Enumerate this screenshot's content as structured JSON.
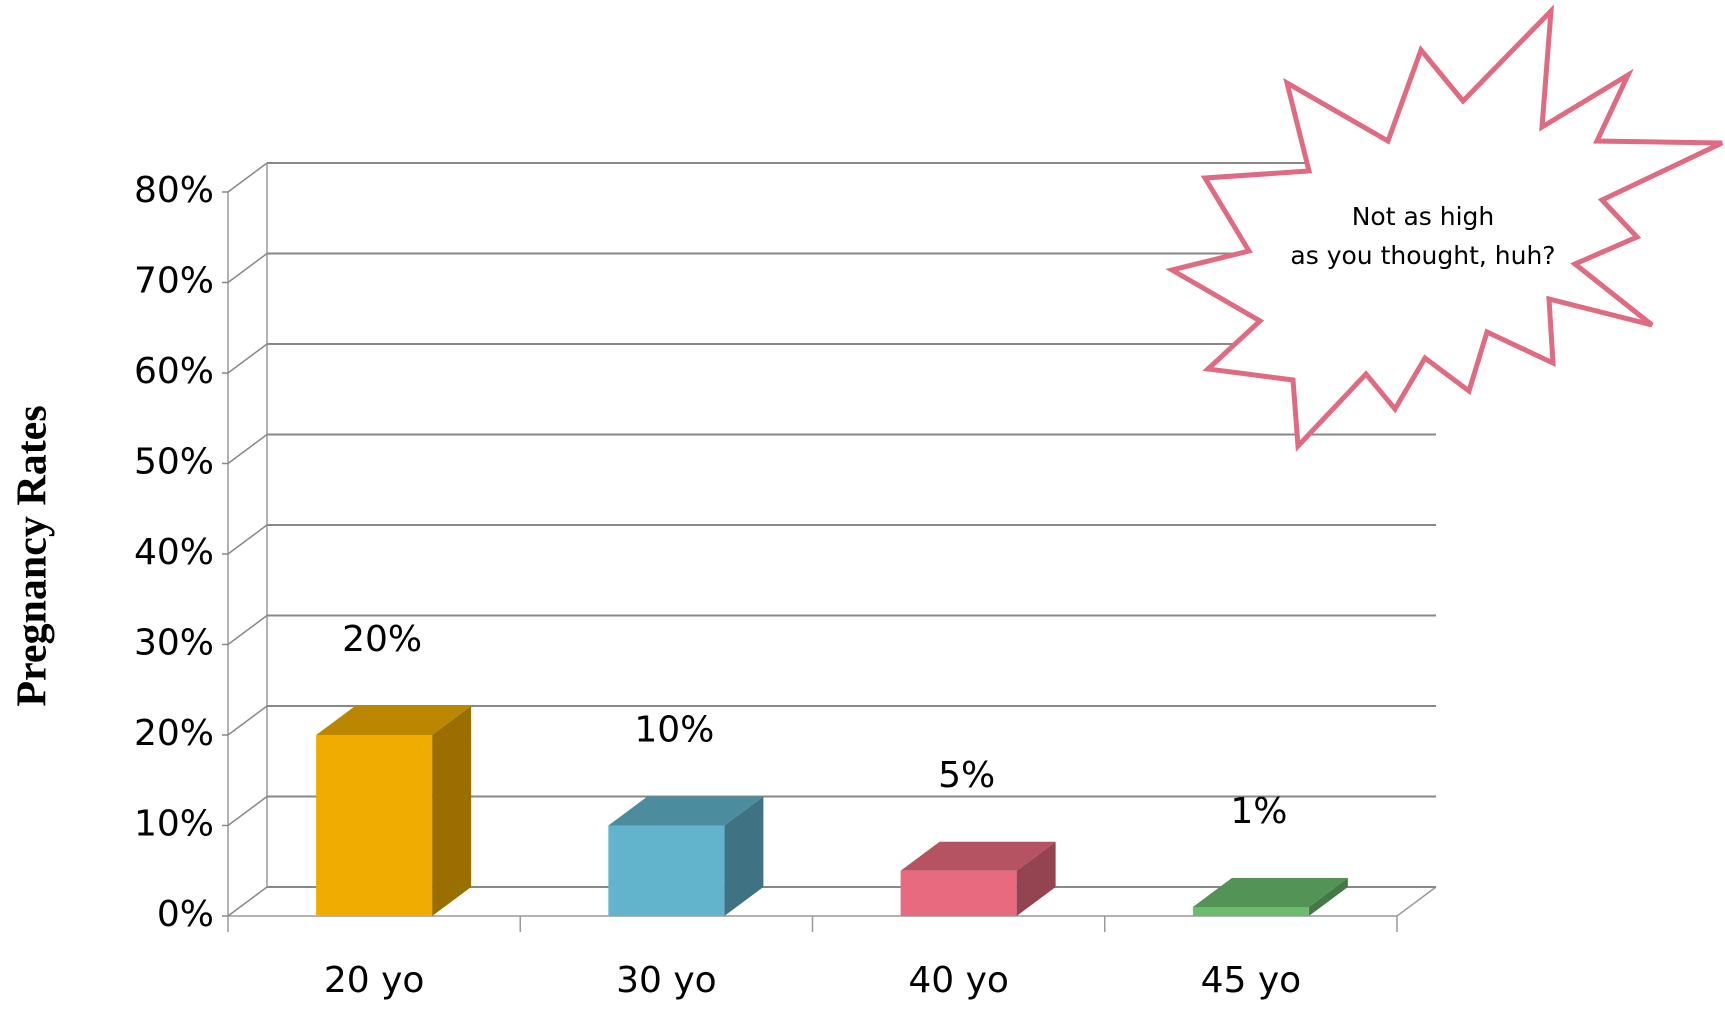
{
  "chart_data": {
    "type": "bar3d",
    "y_label": "Pregnancy Rates",
    "categories": [
      "20 yo",
      "30 yo",
      "40 yo",
      "45 yo"
    ],
    "values": [
      20,
      10,
      5,
      1
    ],
    "value_labels": [
      "20%",
      "10%",
      "5%",
      "1%"
    ],
    "colors": [
      "#f0ac00",
      "#62b4cc",
      "#e86a7e",
      "#6bbd6e"
    ],
    "ylim": [
      0,
      80
    ],
    "yticks": [
      {
        "value": 0,
        "label": "0%"
      },
      {
        "value": 10,
        "label": "10%"
      },
      {
        "value": 20,
        "label": "20%"
      },
      {
        "value": 30,
        "label": "30%"
      },
      {
        "value": 40,
        "label": "40%"
      },
      {
        "value": 50,
        "label": "50%"
      },
      {
        "value": 60,
        "label": "60%"
      },
      {
        "value": 70,
        "label": "70%"
      },
      {
        "value": 80,
        "label": "80%"
      }
    ],
    "grid": true,
    "annotation": [
      "Not as high",
      "as you thought, huh?"
    ]
  }
}
